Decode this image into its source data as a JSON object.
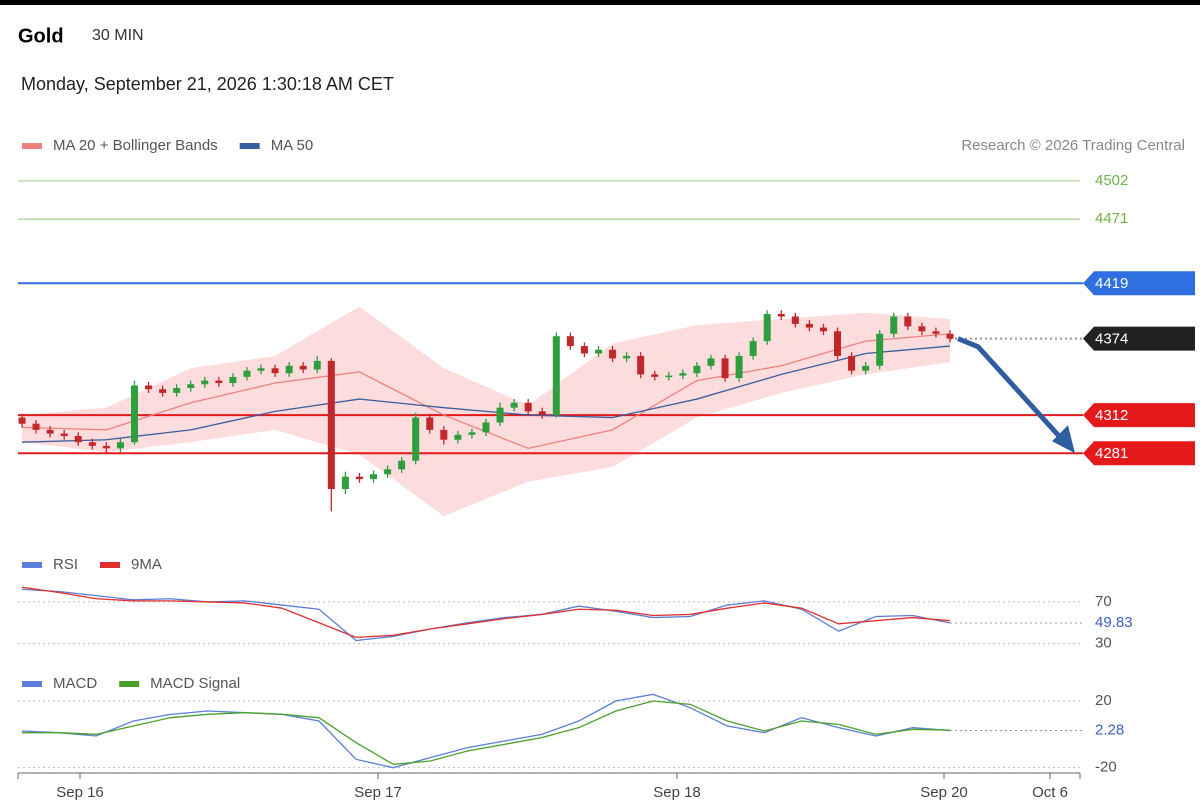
{
  "header": {
    "title": "Gold",
    "interval": "30 MIN",
    "timestamp": "Monday, September 21, 2026 1:30:18 AM CET",
    "credit": "Research © 2026 Trading Central"
  },
  "x_axis": {
    "labels": [
      "Sep 16",
      "Sep 17",
      "Sep 18",
      "Sep 20",
      "Oct 6"
    ]
  },
  "chart_data": [
    {
      "type": "candlestick",
      "ylim": [
        4209,
        4519
      ],
      "up_color": "#2e9e3e",
      "down_color": "#c0282c",
      "open": [
        4310,
        4305,
        4300,
        4297,
        4295,
        4290,
        4287,
        4285,
        4290,
        4336,
        4333,
        4330,
        4334,
        4337,
        4340,
        4338,
        4343,
        4348,
        4350,
        4346,
        4352,
        4349,
        4356,
        4252,
        4262,
        4260,
        4264,
        4268,
        4275,
        4310,
        4300,
        4292,
        4296,
        4298,
        4306,
        4318,
        4322,
        4315,
        4312,
        4376,
        4368,
        4362,
        4365,
        4358,
        4360,
        4345,
        4343,
        4344,
        4346,
        4352,
        4358,
        4342,
        4360,
        4372,
        4394,
        4392,
        4386,
        4383,
        4380,
        4360,
        4348,
        4352,
        4378,
        4392,
        4384,
        4380,
        4378
      ],
      "high": [
        4313,
        4308,
        4303,
        4300,
        4298,
        4293,
        4290,
        4293,
        4340,
        4339,
        4336,
        4337,
        4340,
        4343,
        4343,
        4346,
        4351,
        4353,
        4353,
        4355,
        4355,
        4360,
        4358,
        4266,
        4265,
        4267,
        4271,
        4278,
        4314,
        4313,
        4303,
        4299,
        4301,
        4309,
        4322,
        4325,
        4325,
        4318,
        4379,
        4379,
        4371,
        4368,
        4368,
        4363,
        4363,
        4348,
        4347,
        4349,
        4355,
        4361,
        4361,
        4363,
        4375,
        4397,
        4397,
        4395,
        4389,
        4386,
        4383,
        4363,
        4355,
        4381,
        4395,
        4395,
        4387,
        4383,
        4381
      ],
      "low": [
        4302,
        4297,
        4294,
        4292,
        4287,
        4284,
        4281,
        4282,
        4288,
        4330,
        4327,
        4327,
        4331,
        4334,
        4335,
        4335,
        4340,
        4345,
        4343,
        4343,
        4346,
        4346,
        4234,
        4248,
        4257,
        4257,
        4261,
        4265,
        4272,
        4297,
        4288,
        4289,
        4293,
        4295,
        4303,
        4315,
        4312,
        4309,
        4310,
        4365,
        4359,
        4359,
        4355,
        4355,
        4342,
        4340,
        4340,
        4341,
        4343,
        4349,
        4339,
        4339,
        4357,
        4369,
        4389,
        4383,
        4380,
        4377,
        4357,
        4345,
        4345,
        4349,
        4375,
        4381,
        4377,
        4375,
        4371
      ],
      "close": [
        4305,
        4300,
        4297,
        4295,
        4290,
        4287,
        4285,
        4290,
        4336,
        4333,
        4330,
        4334,
        4337,
        4340,
        4338,
        4343,
        4348,
        4350,
        4346,
        4352,
        4349,
        4356,
        4252,
        4262,
        4260,
        4264,
        4268,
        4275,
        4310,
        4300,
        4292,
        4296,
        4298,
        4306,
        4318,
        4322,
        4315,
        4312,
        4376,
        4368,
        4362,
        4365,
        4358,
        4360,
        4345,
        4343,
        4344,
        4346,
        4352,
        4358,
        4342,
        4360,
        4372,
        4394,
        4392,
        4386,
        4383,
        4380,
        4360,
        4348,
        4352,
        4378,
        4392,
        4384,
        4380,
        4378,
        4374
      ],
      "overlays": [
        {
          "name": "MA 20 + Bollinger Bands",
          "color": "#f08080",
          "band_color": "#fcd6d6",
          "values": [
            4302,
            4300,
            4322,
            4338,
            4347,
            4312,
            4285,
            4300,
            4340,
            4352,
            4372,
            4378
          ],
          "upper": [
            4312,
            4318,
            4350,
            4360,
            4400,
            4350,
            4320,
            4370,
            4385,
            4390,
            4395,
            4390
          ],
          "lower": [
            4290,
            4282,
            4290,
            4300,
            4280,
            4230,
            4258,
            4270,
            4310,
            4330,
            4345,
            4355
          ]
        },
        {
          "name": "MA 50",
          "color": "#3a5fa0",
          "values": [
            4290,
            4292,
            4300,
            4315,
            4325,
            4318,
            4312,
            4310,
            4325,
            4345,
            4362,
            4368
          ]
        }
      ],
      "levels": [
        {
          "value": 4502,
          "color": "#6db34a",
          "tag": false
        },
        {
          "value": 4471,
          "color": "#6db34a",
          "tag": false
        },
        {
          "value": 4419,
          "color": "#2f6fe0",
          "tag": true
        },
        {
          "value": 4374,
          "color": "#222222",
          "tag": true,
          "dotted": true
        },
        {
          "value": 4312,
          "color": "#e5191b",
          "tag": true
        },
        {
          "value": 4281,
          "color": "#e5191b",
          "tag": true
        }
      ],
      "arrow_color": "#2f5ea0"
    },
    {
      "type": "line",
      "ylim": [
        22,
        91
      ],
      "yticks": [
        30,
        70
      ],
      "current": 49.83,
      "series": [
        {
          "name": "RSI",
          "color": "#5b7fd6",
          "values": [
            82,
            80,
            76,
            72,
            73,
            70,
            71,
            67,
            63,
            33,
            37,
            44,
            50,
            55,
            58,
            66,
            61,
            55,
            56,
            67,
            71,
            63,
            42,
            56,
            57,
            49.83
          ]
        },
        {
          "name": "9MA",
          "color": "#e03030",
          "values": [
            84,
            79,
            73,
            71,
            71,
            70,
            69,
            64,
            50,
            36,
            38,
            44,
            49,
            54,
            58,
            63,
            62,
            57,
            58,
            64,
            69,
            64,
            49,
            52,
            55,
            52
          ]
        }
      ]
    },
    {
      "type": "line",
      "ylim": [
        -22,
        32
      ],
      "yticks": [
        -20,
        20
      ],
      "current": 2.28,
      "series": [
        {
          "name": "MACD",
          "color": "#5b7fd6",
          "values": [
            2,
            1,
            -1,
            8,
            12,
            14,
            13,
            12,
            8,
            -15,
            -20,
            -14,
            -8,
            -4,
            0,
            8,
            20,
            24,
            16,
            5,
            1,
            10,
            4,
            -1,
            4,
            2.28
          ]
        },
        {
          "name": "MACD Signal",
          "color": "#4aa02c",
          "values": [
            1,
            1,
            0,
            5,
            10,
            12,
            13,
            12,
            10,
            -5,
            -18,
            -16,
            -10,
            -6,
            -2,
            4,
            14,
            20,
            18,
            8,
            2,
            8,
            6,
            0,
            3,
            2.5
          ]
        }
      ]
    }
  ]
}
